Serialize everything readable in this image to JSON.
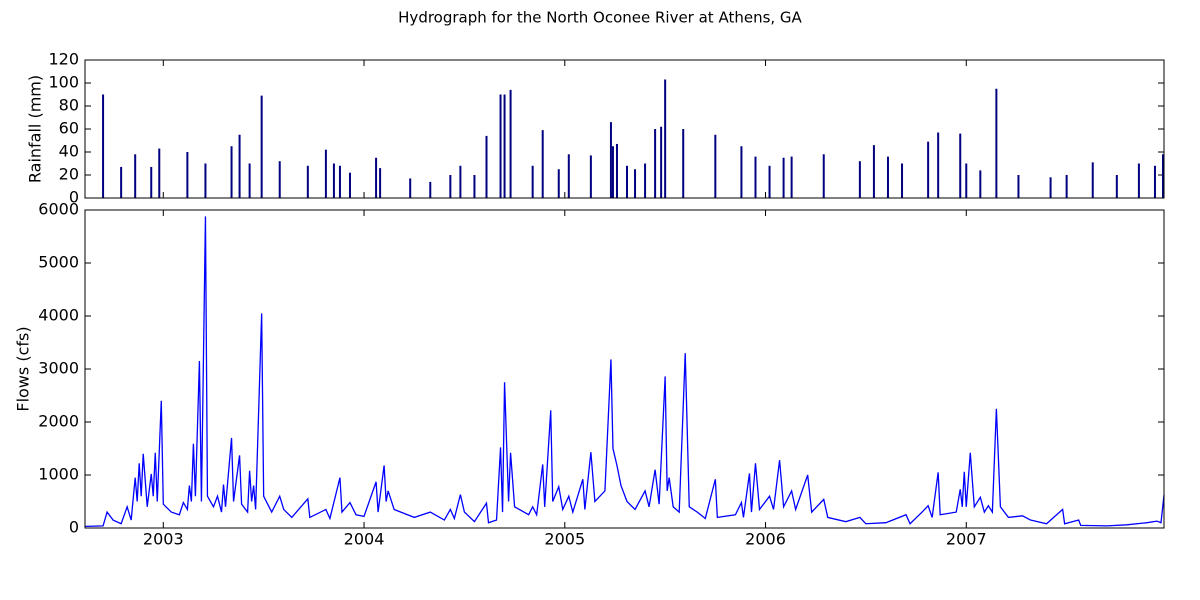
{
  "chart_data": [
    {
      "type": "bar",
      "title": "Hydrograph for the North Oconee River at Athens, GA",
      "ylabel": "Rainfall (mm)",
      "color": "#000080",
      "x": [
        2002.7,
        2002.79,
        2002.86,
        2002.94,
        2002.98,
        2003.12,
        2003.21,
        2003.34,
        2003.38,
        2003.43,
        2003.49,
        2003.58,
        2003.72,
        2003.81,
        2003.85,
        2003.88,
        2003.93,
        2004.06,
        2004.08,
        2004.23,
        2004.33,
        2004.43,
        2004.48,
        2004.55,
        2004.61,
        2004.68,
        2004.7,
        2004.73,
        2004.84,
        2004.89,
        2004.97,
        2005.02,
        2005.13,
        2005.23,
        2005.24,
        2005.26,
        2005.31,
        2005.35,
        2005.4,
        2005.45,
        2005.48,
        2005.5,
        2005.59,
        2005.75,
        2005.88,
        2005.95,
        2006.02,
        2006.09,
        2006.13,
        2006.29,
        2006.47,
        2006.54,
        2006.61,
        2006.68,
        2006.81,
        2006.86,
        2006.97,
        2007.0,
        2007.07,
        2007.15,
        2007.26,
        2007.42,
        2007.5,
        2007.63,
        2007.75,
        2007.86,
        2007.94,
        2007.98
      ],
      "values": [
        90,
        27,
        38,
        27,
        43,
        40,
        30,
        45,
        55,
        30,
        89,
        32,
        28,
        42,
        30,
        28,
        22,
        35,
        26,
        17,
        14,
        20,
        28,
        20,
        54,
        90,
        90,
        94,
        28,
        59,
        25,
        38,
        37,
        66,
        45,
        47,
        28,
        25,
        30,
        60,
        62,
        103,
        60,
        55,
        45,
        36,
        28,
        35,
        36,
        38,
        32,
        46,
        36,
        30,
        49,
        57,
        56,
        30,
        24,
        95,
        20,
        18,
        20,
        31,
        20,
        30,
        28,
        38
      ],
      "xlim": [
        2002.61,
        2007.985
      ],
      "ylim": [
        0,
        120
      ],
      "yticks": [
        0,
        20,
        40,
        60,
        80,
        100,
        120
      ]
    },
    {
      "type": "line",
      "ylabel": "Flows (cfs)",
      "color": "#0000ff",
      "x": [
        2002.61,
        2002.7,
        2002.72,
        2002.75,
        2002.79,
        2002.82,
        2002.84,
        2002.86,
        2002.87,
        2002.88,
        2002.89,
        2002.9,
        2002.92,
        2002.94,
        2002.95,
        2002.96,
        2002.97,
        2002.99,
        2003.0,
        2003.04,
        2003.08,
        2003.1,
        2003.12,
        2003.13,
        2003.14,
        2003.15,
        2003.16,
        2003.18,
        2003.19,
        2003.21,
        2003.22,
        2003.25,
        2003.27,
        2003.29,
        2003.3,
        2003.31,
        2003.34,
        2003.35,
        2003.38,
        2003.39,
        2003.42,
        2003.43,
        2003.44,
        2003.45,
        2003.46,
        2003.49,
        2003.5,
        2003.54,
        2003.58,
        2003.6,
        2003.64,
        2003.72,
        2003.73,
        2003.81,
        2003.83,
        2003.88,
        2003.89,
        2003.93,
        2003.96,
        2004.0,
        2004.06,
        2004.07,
        2004.1,
        2004.11,
        2004.12,
        2004.15,
        2004.25,
        2004.33,
        2004.4,
        2004.43,
        2004.45,
        2004.48,
        2004.5,
        2004.55,
        2004.61,
        2004.62,
        2004.66,
        2004.68,
        2004.69,
        2004.7,
        2004.72,
        2004.73,
        2004.75,
        2004.82,
        2004.84,
        2004.86,
        2004.89,
        2004.9,
        2004.93,
        2004.94,
        2004.97,
        2004.99,
        2005.02,
        2005.04,
        2005.09,
        2005.1,
        2005.13,
        2005.15,
        2005.2,
        2005.23,
        2005.24,
        2005.26,
        2005.28,
        2005.31,
        2005.35,
        2005.4,
        2005.42,
        2005.45,
        2005.47,
        2005.5,
        2005.51,
        2005.52,
        2005.54,
        2005.57,
        2005.6,
        2005.62,
        2005.66,
        2005.7,
        2005.75,
        2005.76,
        2005.85,
        2005.88,
        2005.89,
        2005.92,
        2005.93,
        2005.95,
        2005.97,
        2006.02,
        2006.04,
        2006.07,
        2006.09,
        2006.13,
        2006.15,
        2006.21,
        2006.23,
        2006.29,
        2006.31,
        2006.4,
        2006.47,
        2006.5,
        2006.6,
        2006.7,
        2006.72,
        2006.78,
        2006.81,
        2006.83,
        2006.86,
        2006.87,
        2006.95,
        2006.97,
        2006.98,
        2006.99,
        2007.0,
        2007.02,
        2007.04,
        2007.07,
        2007.09,
        2007.11,
        2007.13,
        2007.15,
        2007.17,
        2007.21,
        2007.28,
        2007.32,
        2007.4,
        2007.48,
        2007.49,
        2007.56,
        2007.57,
        2007.7,
        2007.8,
        2007.9,
        2007.95,
        2007.97,
        2007.985
      ],
      "values": [
        30,
        40,
        300,
        150,
        80,
        400,
        150,
        950,
        500,
        1220,
        600,
        1400,
        400,
        1020,
        600,
        1420,
        500,
        2400,
        450,
        300,
        250,
        480,
        350,
        800,
        500,
        1590,
        600,
        3150,
        500,
        5880,
        600,
        400,
        600,
        300,
        820,
        400,
        1700,
        500,
        1370,
        450,
        300,
        1080,
        500,
        800,
        350,
        4050,
        600,
        300,
        600,
        350,
        200,
        550,
        200,
        350,
        180,
        950,
        300,
        480,
        250,
        220,
        870,
        300,
        1180,
        500,
        700,
        350,
        200,
        300,
        150,
        350,
        180,
        630,
        300,
        120,
        470,
        100,
        150,
        1520,
        300,
        2750,
        500,
        1420,
        400,
        250,
        400,
        250,
        1200,
        400,
        2220,
        500,
        780,
        350,
        600,
        300,
        920,
        350,
        1430,
        500,
        700,
        3180,
        1500,
        1180,
        800,
        500,
        350,
        700,
        400,
        1100,
        450,
        2860,
        700,
        950,
        400,
        300,
        3300,
        400,
        300,
        180,
        920,
        200,
        250,
        480,
        200,
        1030,
        300,
        1220,
        350,
        600,
        350,
        1280,
        400,
        700,
        350,
        1000,
        300,
        540,
        200,
        120,
        200,
        80,
        100,
        250,
        80,
        300,
        420,
        200,
        1050,
        250,
        300,
        730,
        400,
        1060,
        400,
        1420,
        400,
        580,
        300,
        420,
        300,
        2250,
        400,
        200,
        230,
        150,
        80,
        350,
        80,
        150,
        50,
        40,
        60,
        100,
        130,
        100,
        620
      ],
      "xlim": [
        2002.61,
        2007.985
      ],
      "xticks": [
        2003,
        2004,
        2005,
        2006,
        2007
      ],
      "ylim": [
        0,
        6000
      ],
      "yticks": [
        0,
        1000,
        2000,
        3000,
        4000,
        5000,
        6000
      ]
    }
  ]
}
